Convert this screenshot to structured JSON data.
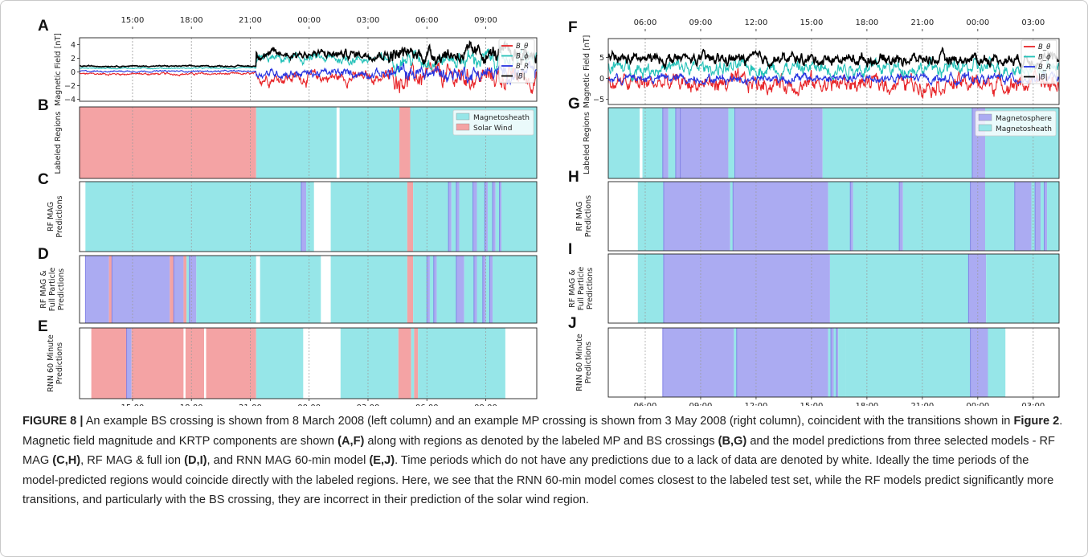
{
  "figure": {
    "caption": {
      "label": "FIGURE 8 |",
      "segments": [
        {
          "text": " An example BS crossing is shown from 8 March 2008 (left column) and an example MP crossing is shown from 3 May 2008 (right column), coincident with the transitions shown in ",
          "bold": false
        },
        {
          "text": "Figure 2",
          "bold": true
        },
        {
          "text": ". Magnetic field magnitude and KRTP components are shown ",
          "bold": false
        },
        {
          "text": "(A,F)",
          "bold": true
        },
        {
          "text": " along with regions as denoted by the labeled MP and BS crossings ",
          "bold": false
        },
        {
          "text": "(B,G)",
          "bold": true
        },
        {
          "text": " and the model predictions from three selected models - RF MAG ",
          "bold": false
        },
        {
          "text": "(C,H)",
          "bold": true
        },
        {
          "text": ", RF MAG & full ion ",
          "bold": false
        },
        {
          "text": "(D,I)",
          "bold": true
        },
        {
          "text": ", and RNN MAG 60-min model ",
          "bold": false
        },
        {
          "text": "(E,J)",
          "bold": true
        },
        {
          "text": ". Time periods which do not have any predictions due to a lack of data are denoted by white. Ideally the time periods of the model-predicted regions would coincide directly with the labeled regions. Here, we see that the RNN 60-min model comes closest to the labeled test set, while the RF models predict significantly more transitions, and particularly with the BS crossing, they are incorrect in their prediction of the solar wind region.",
          "bold": false
        }
      ]
    },
    "colors": {
      "magnetosheath": "#96e6e8",
      "solar_wind": "#f4a3a4",
      "magnetosphere": "#ababf2",
      "no_data": "#ffffff",
      "B_theta": "#e8262a",
      "B_phi": "#23c1b8",
      "B_r": "#2734e0",
      "B_mag": "#000000",
      "grid": "#9a9a9a"
    }
  },
  "chart_data": [
    {
      "type": "line",
      "panel_letter": "A",
      "ylabel": "Magnetic Field [nT]",
      "time_axis": {
        "start_hour": 12.3,
        "end_hour": 35.6,
        "tick_hours": [
          15,
          18,
          21,
          24,
          27,
          30,
          33
        ],
        "tick_labels": [
          "15:00",
          "18:00",
          "21:00",
          "00:00",
          "03:00",
          "06:00",
          "09:00"
        ]
      },
      "ylim": [
        -4.3,
        5.0
      ],
      "yticks": [
        -4,
        -2,
        0,
        2,
        4
      ],
      "legend": [
        "B_θ",
        "B_ϕ",
        "B_R",
        "|B|"
      ],
      "legend_position": "top-right",
      "transition_hour": 21.3,
      "series": [
        {
          "name": "B_θ",
          "color_key": "B_theta",
          "quiet_level": -0.3,
          "quiet_noise": 0.15,
          "active_level": -0.8,
          "active_noise": 1.1
        },
        {
          "name": "B_ϕ",
          "color_key": "B_phi",
          "quiet_level": 0.55,
          "quiet_noise": 0.08,
          "active_level": 1.9,
          "active_noise": 0.9
        },
        {
          "name": "B_R",
          "color_key": "B_r",
          "quiet_level": 0.1,
          "quiet_noise": 0.1,
          "active_level": -0.2,
          "active_noise": 0.8
        },
        {
          "name": "|B|",
          "color_key": "B_mag",
          "quiet_level": 0.85,
          "quiet_noise": 0.08,
          "active_level": 2.6,
          "active_noise": 0.8
        }
      ]
    },
    {
      "type": "line",
      "panel_letter": "F",
      "ylabel": "Magnetic Field [nT]",
      "time_axis": {
        "start_hour": 4.0,
        "end_hour": 28.4,
        "tick_hours": [
          6,
          9,
          12,
          15,
          18,
          21,
          24,
          27
        ],
        "tick_labels": [
          "06:00",
          "09:00",
          "12:00",
          "15:00",
          "18:00",
          "21:00",
          "00:00",
          "03:00"
        ]
      },
      "ylim": [
        -6.2,
        9.5
      ],
      "yticks": [
        -5,
        0,
        5
      ],
      "legend": [
        "B_θ",
        "B_ϕ",
        "B_R",
        "|B|"
      ],
      "legend_position": "top-right",
      "series": [
        {
          "name": "B_θ",
          "color_key": "B_theta",
          "level": -1.2,
          "noise": 1.9
        },
        {
          "name": "B_ϕ",
          "color_key": "B_phi",
          "level": 2.5,
          "noise": 1.6
        },
        {
          "name": "B_R",
          "color_key": "B_r",
          "level": 0.0,
          "noise": 1.0
        },
        {
          "name": "|B|",
          "color_key": "B_mag",
          "level": 4.6,
          "noise": 1.2
        }
      ]
    },
    {
      "type": "timeline",
      "column": "left",
      "time_axis": {
        "start_hour": 12.3,
        "end_hour": 35.6,
        "tick_hours": [
          15,
          18,
          21,
          24,
          27,
          30,
          33
        ],
        "tick_labels": [
          "15:00",
          "18:00",
          "21:00",
          "00:00",
          "03:00",
          "06:00",
          "09:00"
        ]
      },
      "panels": [
        {
          "letter": "B",
          "ylabel": [
            "Labeled Regions"
          ],
          "legend": [
            "Magnetosheath",
            "Solar Wind"
          ],
          "legend_keys": [
            "magnetosheath",
            "solar_wind"
          ],
          "legend_position": "top-right",
          "segments": [
            [
              12.3,
              21.3,
              "solar_wind"
            ],
            [
              21.3,
              25.4,
              "magnetosheath"
            ],
            [
              25.4,
              25.55,
              "no_data"
            ],
            [
              25.55,
              28.6,
              "magnetosheath"
            ],
            [
              28.6,
              29.15,
              "solar_wind"
            ],
            [
              29.15,
              35.6,
              "magnetosheath"
            ]
          ]
        },
        {
          "letter": "C",
          "ylabel": [
            "RF MAG",
            "Predictions"
          ],
          "segments": [
            [
              12.3,
              12.6,
              "no_data"
            ],
            [
              12.6,
              23.6,
              "magnetosheath"
            ],
            [
              23.6,
              23.85,
              "magnetosphere"
            ],
            [
              23.85,
              24.25,
              "magnetosheath"
            ],
            [
              24.25,
              25.1,
              "no_data"
            ],
            [
              25.1,
              29.0,
              "magnetosheath"
            ],
            [
              29.0,
              29.3,
              "solar_wind"
            ],
            [
              29.3,
              31.1,
              "magnetosheath"
            ],
            [
              31.1,
              31.25,
              "magnetosphere"
            ],
            [
              31.25,
              31.5,
              "magnetosheath"
            ],
            [
              31.5,
              31.65,
              "magnetosphere"
            ],
            [
              31.65,
              32.35,
              "magnetosheath"
            ],
            [
              32.35,
              32.55,
              "magnetosphere"
            ],
            [
              32.55,
              32.95,
              "magnetosheath"
            ],
            [
              32.95,
              33.1,
              "magnetosphere"
            ],
            [
              33.1,
              33.35,
              "magnetosheath"
            ],
            [
              33.35,
              33.5,
              "magnetosphere"
            ],
            [
              33.5,
              33.7,
              "magnetosheath"
            ],
            [
              33.7,
              33.8,
              "magnetosphere"
            ],
            [
              33.8,
              35.6,
              "magnetosheath"
            ]
          ]
        },
        {
          "letter": "D",
          "ylabel": [
            "RF MAG &",
            "Full Particle",
            "Predictions"
          ],
          "segments": [
            [
              12.3,
              12.6,
              "no_data"
            ],
            [
              12.6,
              13.8,
              "magnetosphere"
            ],
            [
              13.8,
              13.95,
              "solar_wind"
            ],
            [
              13.95,
              16.9,
              "magnetosphere"
            ],
            [
              16.9,
              17.1,
              "solar_wind"
            ],
            [
              17.1,
              17.6,
              "magnetosphere"
            ],
            [
              17.6,
              17.75,
              "solar_wind"
            ],
            [
              17.75,
              17.9,
              "magnetosheath"
            ],
            [
              17.9,
              18.25,
              "magnetosphere"
            ],
            [
              18.25,
              21.3,
              "magnetosheath"
            ],
            [
              21.3,
              21.5,
              "no_data"
            ],
            [
              21.5,
              24.6,
              "magnetosheath"
            ],
            [
              24.6,
              25.1,
              "no_data"
            ],
            [
              25.1,
              29.0,
              "magnetosheath"
            ],
            [
              29.0,
              29.3,
              "solar_wind"
            ],
            [
              29.3,
              30.0,
              "magnetosheath"
            ],
            [
              30.0,
              30.15,
              "magnetosphere"
            ],
            [
              30.15,
              30.35,
              "magnetosheath"
            ],
            [
              30.35,
              30.5,
              "magnetosphere"
            ],
            [
              30.5,
              31.5,
              "magnetosheath"
            ],
            [
              31.5,
              31.9,
              "magnetosphere"
            ],
            [
              31.9,
              32.4,
              "magnetosheath"
            ],
            [
              32.4,
              32.55,
              "magnetosphere"
            ],
            [
              32.55,
              32.85,
              "magnetosheath"
            ],
            [
              32.85,
              33.0,
              "magnetosphere"
            ],
            [
              33.0,
              33.2,
              "magnetosheath"
            ],
            [
              33.2,
              33.35,
              "magnetosphere"
            ],
            [
              33.35,
              35.6,
              "magnetosheath"
            ]
          ]
        },
        {
          "letter": "E",
          "ylabel": [
            "RNN 60 Minute",
            "Predictions"
          ],
          "segments": [
            [
              12.3,
              12.9,
              "no_data"
            ],
            [
              12.9,
              14.7,
              "solar_wind"
            ],
            [
              14.7,
              14.95,
              "magnetosphere"
            ],
            [
              14.95,
              17.6,
              "solar_wind"
            ],
            [
              17.6,
              17.7,
              "no_data"
            ],
            [
              17.7,
              18.65,
              "solar_wind"
            ],
            [
              18.65,
              18.75,
              "no_data"
            ],
            [
              18.75,
              21.3,
              "solar_wind"
            ],
            [
              21.3,
              23.7,
              "magnetosheath"
            ],
            [
              23.7,
              25.6,
              "no_data"
            ],
            [
              25.6,
              28.55,
              "magnetosheath"
            ],
            [
              28.55,
              29.2,
              "solar_wind"
            ],
            [
              29.2,
              29.35,
              "magnetosheath"
            ],
            [
              29.35,
              29.55,
              "solar_wind"
            ],
            [
              29.55,
              34.0,
              "magnetosheath"
            ],
            [
              34.0,
              35.6,
              "no_data"
            ]
          ]
        }
      ]
    },
    {
      "type": "timeline",
      "column": "right",
      "time_axis": {
        "start_hour": 4.0,
        "end_hour": 28.4,
        "tick_hours": [
          6,
          9,
          12,
          15,
          18,
          21,
          24,
          27
        ],
        "tick_labels": [
          "06:00",
          "09:00",
          "12:00",
          "15:00",
          "18:00",
          "21:00",
          "00:00",
          "03:00"
        ]
      },
      "panels": [
        {
          "letter": "G",
          "ylabel": [
            "Labeled Regions"
          ],
          "legend": [
            "Magnetosphere",
            "Magnetosheath"
          ],
          "legend_keys": [
            "magnetosphere",
            "magnetosheath"
          ],
          "legend_position": "top-right",
          "segments": [
            [
              4.0,
              5.7,
              "magnetosheath"
            ],
            [
              5.7,
              5.85,
              "no_data"
            ],
            [
              5.85,
              6.95,
              "magnetosheath"
            ],
            [
              6.95,
              7.25,
              "magnetosphere"
            ],
            [
              7.25,
              7.65,
              "magnetosheath"
            ],
            [
              7.65,
              7.9,
              "magnetosphere"
            ],
            [
              7.9,
              10.5,
              "magnetosphere"
            ],
            [
              10.5,
              10.85,
              "magnetosheath"
            ],
            [
              10.85,
              15.6,
              "magnetosphere"
            ],
            [
              15.6,
              23.7,
              "magnetosheath"
            ],
            [
              23.7,
              24.4,
              "magnetosphere"
            ],
            [
              24.4,
              28.4,
              "magnetosheath"
            ]
          ]
        },
        {
          "letter": "H",
          "ylabel": [
            "RF MAG",
            "Predictions"
          ],
          "segments": [
            [
              4.0,
              5.6,
              "no_data"
            ],
            [
              5.6,
              7.0,
              "magnetosheath"
            ],
            [
              7.0,
              10.6,
              "magnetosphere"
            ],
            [
              10.6,
              10.75,
              "magnetosheath"
            ],
            [
              10.75,
              15.9,
              "magnetosphere"
            ],
            [
              15.9,
              17.1,
              "magnetosheath"
            ],
            [
              17.1,
              17.25,
              "magnetosphere"
            ],
            [
              17.25,
              19.75,
              "magnetosheath"
            ],
            [
              19.75,
              19.95,
              "magnetosphere"
            ],
            [
              19.95,
              23.6,
              "magnetosheath"
            ],
            [
              23.6,
              24.4,
              "magnetosphere"
            ],
            [
              24.4,
              26.0,
              "magnetosheath"
            ],
            [
              26.0,
              26.9,
              "magnetosphere"
            ],
            [
              26.9,
              27.1,
              "magnetosheath"
            ],
            [
              27.1,
              27.4,
              "magnetosphere"
            ],
            [
              27.4,
              27.6,
              "magnetosheath"
            ],
            [
              27.6,
              27.75,
              "magnetosphere"
            ],
            [
              27.75,
              28.4,
              "magnetosheath"
            ]
          ]
        },
        {
          "letter": "I",
          "ylabel": [
            "RF MAG &",
            "Full Particle",
            "Predictions"
          ],
          "segments": [
            [
              4.0,
              5.6,
              "no_data"
            ],
            [
              5.6,
              7.0,
              "magnetosheath"
            ],
            [
              7.0,
              16.0,
              "magnetosphere"
            ],
            [
              16.0,
              23.5,
              "magnetosheath"
            ],
            [
              23.5,
              24.45,
              "magnetosphere"
            ],
            [
              24.45,
              28.4,
              "magnetosheath"
            ]
          ]
        },
        {
          "letter": "J",
          "ylabel": [
            "RNN 60 Minute",
            "Predictions"
          ],
          "segments": [
            [
              4.0,
              6.95,
              "no_data"
            ],
            [
              6.95,
              10.8,
              "magnetosphere"
            ],
            [
              10.8,
              10.95,
              "magnetosheath"
            ],
            [
              10.95,
              15.9,
              "magnetosphere"
            ],
            [
              15.9,
              16.05,
              "magnetosheath"
            ],
            [
              16.05,
              16.2,
              "magnetosphere"
            ],
            [
              16.2,
              16.35,
              "magnetosheath"
            ],
            [
              16.35,
              16.45,
              "magnetosphere"
            ],
            [
              16.45,
              16.85,
              "magnetosheath"
            ],
            [
              16.85,
              23.6,
              "magnetosheath"
            ],
            [
              23.6,
              24.55,
              "magnetosphere"
            ],
            [
              24.55,
              25.5,
              "magnetosheath"
            ],
            [
              25.5,
              28.4,
              "no_data"
            ]
          ]
        }
      ]
    }
  ]
}
